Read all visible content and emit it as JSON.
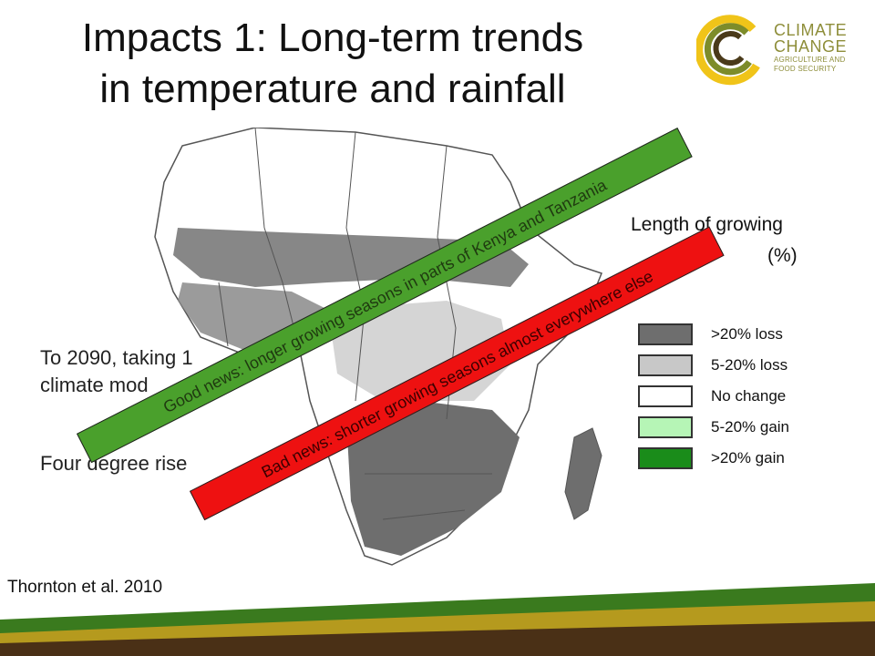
{
  "title": {
    "line1": "Impacts 1: Long-term trends",
    "line2": "in temperature and rainfall"
  },
  "logo": {
    "line1": "CLIMATE",
    "line2": "CHANGE",
    "line3": "AGRICULTURE AND",
    "line4": "FOOD SECURITY"
  },
  "body_text": {
    "line1": "To 2090, taking 1",
    "line2": "climate mod",
    "line3": "Four degree rise"
  },
  "legend": {
    "title_line1": "Length of growing",
    "title_line2": "(%)",
    "items": [
      {
        "label": ">20% loss",
        "color": "#6e6e6e"
      },
      {
        "label": "5-20% loss",
        "color": "#c8c8c8"
      },
      {
        "label": "No change",
        "color": "#ffffff"
      },
      {
        "label": "5-20% gain",
        "color": "#b6f5b6"
      },
      {
        "label": ">20% gain",
        "color": "#1a8c1a"
      }
    ]
  },
  "banners": {
    "good": "Good news: longer growing seasons in parts of Kenya and Tanzania",
    "bad": "Bad news: shorter growing seasons almost everywhere else"
  },
  "citation": "Thornton et al. 2010",
  "colors": {
    "good_banner": "#4aa02c",
    "bad_banner": "#ee1111",
    "footer_green": "#3a7a1e",
    "footer_gold": "#b59a1e",
    "footer_brown": "#4a3016"
  }
}
